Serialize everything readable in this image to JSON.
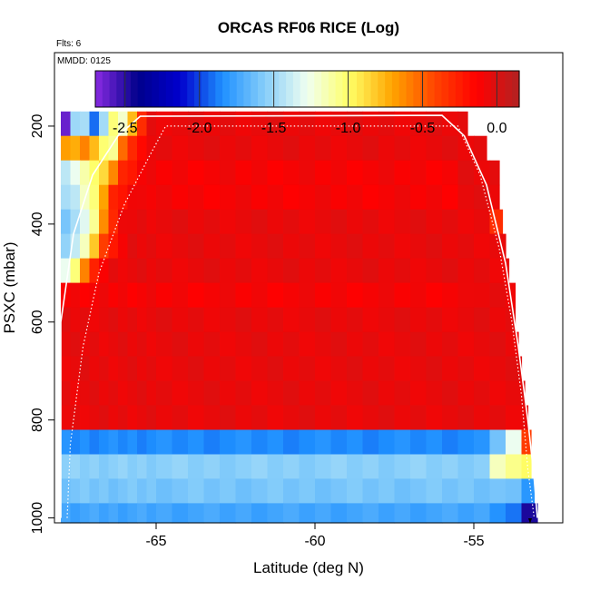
{
  "chart_data": {
    "type": "heatmap",
    "title": "ORCAS RF06 RICE (Log)",
    "flights_label": "Flts: 6",
    "date_label": "MMDD: 0125",
    "xlabel": "Latitude (deg N)",
    "ylabel": "PSXC (mbar)",
    "xlim": [
      -68.2,
      -52.2
    ],
    "ylim": [
      1010,
      50
    ],
    "y_reversed": true,
    "x_ticks": [
      -65,
      -60,
      -55
    ],
    "x_tick_labels": [
      "-65",
      "-60",
      "-55"
    ],
    "y_ticks": [
      200,
      400,
      600,
      800,
      1000
    ],
    "y_tick_labels": [
      "200",
      "400",
      "600",
      "800",
      "1000"
    ],
    "colorbar": {
      "range": [
        -2.7,
        0.15
      ],
      "ticks": [
        -2.5,
        -2.0,
        -1.5,
        -1.0,
        -0.5,
        0.0
      ],
      "tick_labels": [
        "-2.5",
        "-2.0",
        "-1.5",
        "-1.0",
        "-0.5",
        "0.0"
      ],
      "colors": [
        "#8a2be2",
        "#00008b",
        "#0000cd",
        "#1e90ff",
        "#87cefa",
        "#f0fff0",
        "#ffff66",
        "#ffa500",
        "#ff4500",
        "#ff0000",
        "#b22222"
      ]
    },
    "grid": false,
    "lat_bins": [
      -68.0,
      -67.7,
      -67.4,
      -67.1,
      -66.8,
      -66.5,
      -66.2,
      -65.9,
      -65.6,
      -65.3,
      -65.0,
      -64.5,
      -64.0,
      -63.5,
      -63.0,
      -62.5,
      -62.0,
      -61.5,
      -61.0,
      -60.5,
      -60.0,
      -59.5,
      -59.0,
      -58.5,
      -58.0,
      -57.5,
      -57.0,
      -56.5,
      -56.0,
      -55.5,
      -55.0,
      -54.5,
      -54.0,
      -53.5,
      -53.0,
      -52.5
    ],
    "pressure_bins": [
      170,
      220,
      270,
      320,
      370,
      420,
      470,
      520,
      570,
      620,
      670,
      720,
      770,
      820,
      870,
      920,
      970,
      1010
    ],
    "row_end_lat": [
      -55.2,
      -54.6,
      -54.2,
      -54.2,
      -54.1,
      -54.0,
      -53.9,
      -53.7,
      -53.7,
      -53.6,
      -53.5,
      -53.4,
      -53.3,
      -53.2,
      -53.2,
      -53.1,
      -53.0
    ],
    "background_row_values": [
      -0.05,
      -0.05,
      -0.1,
      -0.1,
      -0.05,
      -0.05,
      -0.05,
      -0.1,
      -0.05,
      -0.05,
      -0.05,
      -0.05,
      -0.05,
      -1.85,
      -1.55,
      -1.6,
      -1.75
    ],
    "left_edge_values": [
      [
        -2.6,
        -1.5,
        -1.5,
        -1.9,
        -1.5,
        -1.0,
        -1.2,
        -0.8,
        -0.3
      ],
      [
        -0.7,
        -0.7,
        -0.6,
        -0.8,
        -1.0,
        -1.1,
        -0.5,
        -0.3,
        -0.2
      ],
      [
        -1.4,
        -1.3,
        -1.1,
        -1.0,
        -0.9,
        -0.6,
        -0.3,
        -0.2,
        -0.1
      ],
      [
        -1.5,
        -1.4,
        -1.2,
        -1.0,
        -0.7,
        -0.3,
        -0.2,
        -0.1,
        -0.05
      ],
      [
        -1.6,
        -1.5,
        -1.3,
        -1.1,
        -0.6,
        -0.3,
        -0.1,
        -0.05,
        -0.05
      ],
      [
        -1.5,
        -1.4,
        -1.2,
        -0.8,
        -0.4,
        -0.2,
        -0.1,
        -0.05,
        -0.05
      ],
      [
        -1.3,
        -1.0,
        -0.6,
        -0.3,
        -0.1,
        -0.05,
        -0.05,
        -0.05,
        -0.05
      ]
    ],
    "right_edge_values": [
      [
        -0.05,
        -0.05,
        -0.05
      ],
      [
        -0.05,
        -0.05,
        -0.05
      ],
      [
        -0.05,
        -0.05,
        -0.05
      ],
      [
        -0.05,
        -0.05,
        -0.05
      ],
      [
        -0.05,
        -0.05,
        -0.35
      ],
      [
        -0.05,
        -0.05,
        -0.05
      ],
      [
        -0.05,
        -0.05,
        -0.05
      ],
      [
        -0.05,
        -0.05,
        -0.05
      ],
      [
        -0.05,
        -0.05,
        -0.05
      ],
      [
        -0.05,
        -0.05,
        -0.05
      ],
      [
        -0.05,
        -0.05,
        -0.05
      ],
      [
        -0.05,
        -0.05,
        -0.05
      ],
      [
        -0.05,
        -0.05,
        -0.05
      ],
      [
        -1.6,
        -1.3,
        -0.35
      ],
      [
        -1.2,
        -1.05,
        -1.0
      ],
      [
        -1.6,
        -1.65,
        -1.8
      ],
      [
        -1.8,
        -1.9,
        -2.5
      ]
    ],
    "flight_track_path": [
      [
        -68.0,
        1000
      ],
      [
        -68.0,
        600
      ],
      [
        -67.6,
        420
      ],
      [
        -67.0,
        300
      ],
      [
        -66.2,
        220
      ],
      [
        -65.5,
        180
      ],
      [
        -56.0,
        178
      ],
      [
        -55.3,
        220
      ],
      [
        -54.6,
        320
      ],
      [
        -54.0,
        480
      ],
      [
        -53.6,
        650
      ],
      [
        -53.3,
        800
      ],
      [
        -53.1,
        920
      ],
      [
        -53.0,
        1000
      ]
    ],
    "flight_track_dots": [
      [
        -67.8,
        1000
      ],
      [
        -67.7,
        850
      ],
      [
        -67.3,
        650
      ],
      [
        -66.8,
        500
      ],
      [
        -66.0,
        360
      ],
      [
        -65.2,
        260
      ],
      [
        -64.7,
        200
      ],
      [
        -55.5,
        200
      ],
      [
        -54.8,
        300
      ],
      [
        -54.2,
        450
      ],
      [
        -53.8,
        600
      ],
      [
        -53.5,
        750
      ],
      [
        -53.3,
        900
      ],
      [
        -53.1,
        1000
      ]
    ]
  }
}
